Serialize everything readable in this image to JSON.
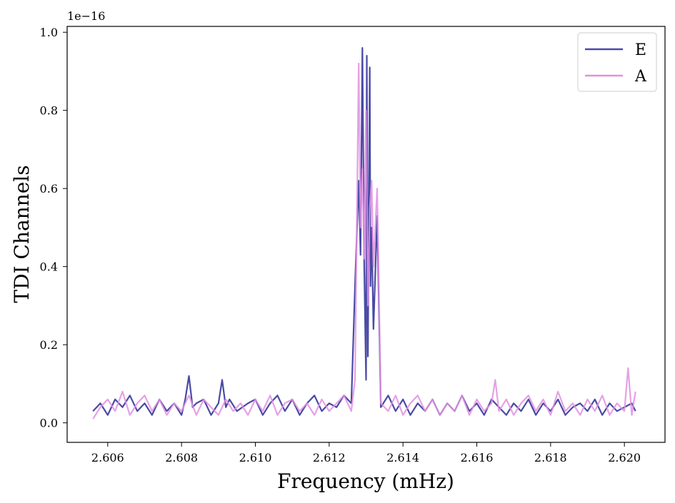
{
  "chart_data": {
    "type": "line",
    "title": "",
    "xlabel": "Frequency (mHz)",
    "ylabel": "TDI Channels",
    "y_offset_label": "1e−16",
    "xlim": [
      2.6049,
      2.6211
    ],
    "ylim": [
      -0.05,
      1.015
    ],
    "x_ticks": [
      2.606,
      2.608,
      2.61,
      2.612,
      2.614,
      2.616,
      2.618,
      2.62
    ],
    "x_tick_labels": [
      "2.606",
      "2.608",
      "2.610",
      "2.612",
      "2.614",
      "2.616",
      "2.618",
      "2.620"
    ],
    "y_ticks": [
      0.0,
      0.2,
      0.4,
      0.6,
      0.8,
      1.0
    ],
    "y_tick_labels": [
      "0.0",
      "0.2",
      "0.4",
      "0.6",
      "0.8",
      "1.0"
    ],
    "grid": false,
    "legend_position": "top-right",
    "series": [
      {
        "name": "E",
        "color": "#4a4aa6",
        "x": [
          2.6056,
          2.6058,
          2.606,
          2.6062,
          2.6064,
          2.6066,
          2.6068,
          2.607,
          2.6072,
          2.6074,
          2.6076,
          2.6078,
          2.608,
          2.6081,
          2.6082,
          2.6083,
          2.6084,
          2.6086,
          2.6088,
          2.609,
          2.6091,
          2.6092,
          2.6093,
          2.6095,
          2.6098,
          2.61,
          2.6102,
          2.6104,
          2.6106,
          2.6108,
          2.611,
          2.6112,
          2.6114,
          2.6116,
          2.6118,
          2.612,
          2.6122,
          2.6124,
          2.6126,
          2.6127,
          2.6128,
          2.61285,
          2.6129,
          2.61295,
          2.613,
          2.61302,
          2.61305,
          2.6131,
          2.61312,
          2.61315,
          2.6132,
          2.6133,
          2.6134,
          2.6136,
          2.6138,
          2.614,
          2.6142,
          2.6144,
          2.6146,
          2.6148,
          2.615,
          2.6152,
          2.6154,
          2.6156,
          2.6158,
          2.616,
          2.6162,
          2.6164,
          2.6166,
          2.6168,
          2.617,
          2.6172,
          2.6174,
          2.6176,
          2.6178,
          2.618,
          2.6182,
          2.6184,
          2.6186,
          2.6188,
          2.619,
          2.6192,
          2.6194,
          2.6196,
          2.6198,
          2.62,
          2.6202,
          2.6203
        ],
        "y": [
          0.03,
          0.05,
          0.02,
          0.06,
          0.04,
          0.07,
          0.03,
          0.05,
          0.02,
          0.06,
          0.03,
          0.05,
          0.02,
          0.06,
          0.12,
          0.04,
          0.05,
          0.06,
          0.02,
          0.05,
          0.11,
          0.04,
          0.06,
          0.03,
          0.05,
          0.06,
          0.02,
          0.05,
          0.07,
          0.03,
          0.06,
          0.02,
          0.05,
          0.07,
          0.03,
          0.05,
          0.04,
          0.07,
          0.05,
          0.35,
          0.62,
          0.43,
          0.96,
          0.4,
          0.11,
          0.94,
          0.17,
          0.91,
          0.35,
          0.5,
          0.24,
          0.53,
          0.04,
          0.07,
          0.03,
          0.06,
          0.02,
          0.05,
          0.03,
          0.06,
          0.02,
          0.05,
          0.03,
          0.07,
          0.03,
          0.05,
          0.02,
          0.06,
          0.04,
          0.02,
          0.05,
          0.03,
          0.06,
          0.02,
          0.05,
          0.03,
          0.06,
          0.02,
          0.04,
          0.05,
          0.03,
          0.06,
          0.02,
          0.05,
          0.03,
          0.04,
          0.05,
          0.03
        ]
      },
      {
        "name": "A",
        "color": "#e090e0",
        "x": [
          2.6056,
          2.6058,
          2.606,
          2.6062,
          2.6064,
          2.6066,
          2.6068,
          2.607,
          2.6072,
          2.6074,
          2.6076,
          2.6078,
          2.608,
          2.6082,
          2.6084,
          2.6086,
          2.6088,
          2.609,
          2.6092,
          2.6094,
          2.6096,
          2.6098,
          2.61,
          2.6102,
          2.6104,
          2.6106,
          2.6108,
          2.611,
          2.6112,
          2.6114,
          2.6116,
          2.6118,
          2.612,
          2.6122,
          2.6124,
          2.6126,
          2.6127,
          2.6128,
          2.61285,
          2.6129,
          2.61295,
          2.613,
          2.61305,
          2.6131,
          2.61315,
          2.6132,
          2.6133,
          2.6134,
          2.6136,
          2.6138,
          2.614,
          2.6142,
          2.6144,
          2.6146,
          2.6148,
          2.615,
          2.6152,
          2.6154,
          2.6156,
          2.6158,
          2.616,
          2.6162,
          2.6164,
          2.6165,
          2.6166,
          2.6168,
          2.617,
          2.6172,
          2.6174,
          2.6176,
          2.6178,
          2.618,
          2.6182,
          2.6184,
          2.6186,
          2.6188,
          2.619,
          2.6192,
          2.6194,
          2.6196,
          2.6198,
          2.62,
          2.6201,
          2.6202,
          2.6203
        ],
        "y": [
          0.01,
          0.04,
          0.06,
          0.03,
          0.08,
          0.02,
          0.05,
          0.07,
          0.03,
          0.06,
          0.02,
          0.05,
          0.03,
          0.07,
          0.02,
          0.06,
          0.04,
          0.02,
          0.06,
          0.03,
          0.05,
          0.02,
          0.06,
          0.03,
          0.07,
          0.02,
          0.05,
          0.06,
          0.03,
          0.05,
          0.02,
          0.06,
          0.03,
          0.05,
          0.07,
          0.03,
          0.11,
          0.92,
          0.5,
          0.65,
          0.42,
          0.8,
          0.3,
          0.55,
          0.62,
          0.4,
          0.6,
          0.05,
          0.03,
          0.07,
          0.02,
          0.05,
          0.07,
          0.03,
          0.06,
          0.02,
          0.05,
          0.03,
          0.07,
          0.02,
          0.06,
          0.03,
          0.05,
          0.11,
          0.03,
          0.06,
          0.02,
          0.05,
          0.07,
          0.03,
          0.06,
          0.02,
          0.08,
          0.03,
          0.05,
          0.02,
          0.06,
          0.03,
          0.07,
          0.02,
          0.05,
          0.03,
          0.14,
          0.02,
          0.08
        ]
      }
    ]
  }
}
